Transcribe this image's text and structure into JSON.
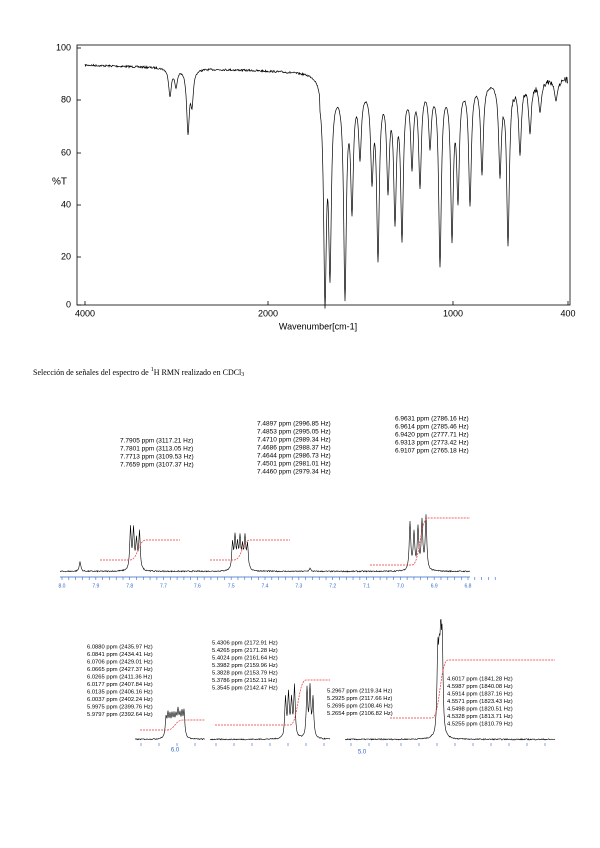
{
  "ir_spectrum": {
    "y_axis_label": "%T",
    "x_axis_label": "Wavenumber[cm-1]",
    "y_tick_labels": [
      "100",
      "80",
      "60",
      "40",
      "20",
      "0"
    ],
    "x_tick_labels": [
      "4000",
      "2000",
      "1000",
      "400"
    ]
  },
  "caption": {
    "text1": "Selección de señales del espectro de ",
    "superscript": "1",
    "text2": "H RMN realizado en CDCl",
    "subscript": "3"
  },
  "nmr_aromatic": {
    "peak_groups": [
      [
        "7.7905 ppm (3117.21 Hz)",
        "7.7801 ppm (3113.05 Hz)",
        "7.7713 ppm (3109.53 Hz)",
        "7.7659 ppm (3107.37 Hz)"
      ],
      [
        "7.4897 ppm (2996.85 Hz)",
        "7.4853 ppm (2995.05 Hz)",
        "7.4710 ppm (2989.34 Hz)",
        "7.4686 ppm (2988.37 Hz)",
        "7.4644 ppm (2986.73 Hz)",
        "7.4501 ppm (2981.01 Hz)",
        "7.4460 ppm (2979.34 Hz)"
      ],
      [
        "6.9631 ppm (2786.16 Hz)",
        "6.9614 ppm (2785.46 Hz)",
        "6.9420 ppm (2777.71 Hz)",
        "6.9313 ppm (2773.42 Hz)",
        "6.9107 ppm (2765.18 Hz)"
      ]
    ],
    "axis_labels": [
      "8.0",
      "7.9",
      "7.8",
      "7.7",
      "7.6",
      "7.5",
      "7.4",
      "7.3",
      "7.2",
      "7.1",
      "7.0",
      "6.9",
      "6.8"
    ]
  },
  "nmr_aliphatic": {
    "peak_groups": [
      [
        "6.0880 ppm (2435.97 Hz)",
        "6.0841 ppm (2434.41 Hz)",
        "6.0706 ppm (2429.01 Hz)",
        "6.0665 ppm (2427.37 Hz)",
        "6.0265 ppm (2411.36 Hz)",
        "6.0177 ppm (2407.84 Hz)",
        "6.0135 ppm (2406.16 Hz)",
        "6.0037 ppm (2402.24 Hz)",
        "5.9975 ppm (2399.76 Hz)",
        "5.9797 ppm (2392.64 Hz)"
      ],
      [
        "5.4306 ppm (2172.91 Hz)",
        "5.4265 ppm (2171.28 Hz)",
        "5.4024 ppm (2161.64 Hz)",
        "5.3982 ppm (2159.96 Hz)",
        "5.3828 ppm (2153.79 Hz)",
        "5.3786 ppm (2152.11 Hz)",
        "5.3545 ppm (2142.47 Hz)"
      ],
      [
        "5.2967 ppm (2119.34 Hz)",
        "5.2925 ppm (2117.66 Hz)",
        "5.2695 ppm (2108.46 Hz)",
        "5.2654 ppm (2106.82 Hz)"
      ],
      [
        "4.6017 ppm (1841.28 Hz)",
        "4.5987 ppm (1840.08 Hz)",
        "4.5914 ppm (1837.16 Hz)",
        "4.5571 ppm (1823.43 Hz)",
        "4.5498 ppm (1820.51 Hz)",
        "4.5328 ppm (1813.71 Hz)",
        "4.5255 ppm (1810.79 Hz)"
      ]
    ],
    "axis_labels": [
      "6.0",
      "5.0"
    ]
  }
}
